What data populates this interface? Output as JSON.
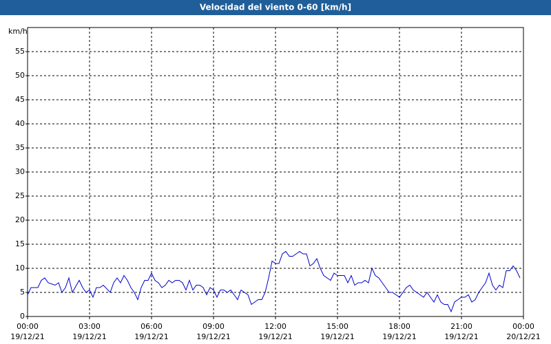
{
  "chart_data": {
    "type": "line",
    "title": "Velocidad del viento 0-60 [km/h]",
    "y_label": "km/h",
    "x": [
      0,
      10,
      30,
      40,
      50,
      60,
      80,
      90,
      100,
      110,
      120,
      130,
      150,
      160,
      170,
      180,
      190,
      200,
      210,
      220,
      240,
      250,
      260,
      270,
      280,
      290,
      300,
      310,
      320,
      330,
      340,
      350,
      360,
      370,
      380,
      390,
      400,
      410,
      420,
      430,
      440,
      450,
      460,
      470,
      480,
      490,
      500,
      510,
      520,
      530,
      540,
      550,
      560,
      570,
      580,
      590,
      600,
      610,
      620,
      630,
      640,
      650,
      660,
      670,
      680,
      690,
      700,
      710,
      720,
      730,
      740,
      750,
      760,
      770,
      780,
      790,
      800,
      810,
      820,
      830,
      840,
      850,
      860,
      870,
      880,
      890,
      900,
      910,
      920,
      930,
      940,
      950,
      960,
      970,
      980,
      990,
      1000,
      1010,
      1020,
      1030,
      1040,
      1050,
      1060,
      1070,
      1080,
      1090,
      1100,
      1110,
      1120,
      1130,
      1140,
      1150,
      1160,
      1170,
      1180,
      1190,
      1200,
      1210,
      1220,
      1230,
      1240,
      1250,
      1260,
      1270,
      1280,
      1290,
      1300,
      1310,
      1320,
      1330,
      1340,
      1350,
      1360,
      1370,
      1380,
      1390,
      1400,
      1410,
      1420,
      1430
    ],
    "series": [
      {
        "name": "Velocidad del viento",
        "color": "#0000cc",
        "values": [
          4.5,
          6,
          6,
          7.5,
          8,
          7,
          6.5,
          7,
          5,
          6,
          8,
          5,
          7.5,
          6,
          5,
          5.5,
          4,
          6,
          6,
          6.5,
          5,
          7,
          8,
          7,
          8.5,
          7.5,
          6,
          5,
          3.5,
          6,
          7.5,
          7.5,
          9,
          7.5,
          7,
          6,
          6.5,
          7.5,
          7,
          7.5,
          7.5,
          7,
          5.5,
          7.5,
          5.5,
          6.5,
          6.5,
          6,
          4.5,
          6,
          5.5,
          4,
          5.5,
          5.5,
          5,
          5.5,
          4.5,
          3.5,
          5.5,
          5,
          4.5,
          2.5,
          3,
          3.5,
          3.5,
          5,
          8,
          11.5,
          11,
          11,
          13,
          13.5,
          12.5,
          12.5,
          13,
          13.5,
          13,
          13,
          10.5,
          11,
          12,
          10,
          8.5,
          8,
          7.5,
          9,
          8.5,
          8.5,
          8.5,
          7,
          8.5,
          6.5,
          7,
          7,
          7.5,
          7,
          10,
          8.5,
          8,
          7,
          6,
          5,
          5,
          4.5,
          4,
          5,
          6,
          6.5,
          5.5,
          5,
          4.5,
          4,
          5,
          4,
          3,
          4.5,
          3,
          2.5,
          2.5,
          1,
          3,
          3.5,
          4,
          4,
          4.5,
          3,
          3.5,
          5,
          6,
          7,
          9,
          6.5,
          5.5,
          6.5,
          6,
          9.5,
          9.5,
          10.5,
          9.5,
          8
        ]
      }
    ],
    "xlim": [
      0,
      1440
    ],
    "xticks": [
      {
        "value": 0,
        "label": "00:00"
      },
      {
        "value": 180,
        "label": "03:00"
      },
      {
        "value": 360,
        "label": "06:00"
      },
      {
        "value": 540,
        "label": "09:00"
      },
      {
        "value": 720,
        "label": "12:00"
      },
      {
        "value": 900,
        "label": "15:00"
      },
      {
        "value": 1080,
        "label": "18:00"
      },
      {
        "value": 1260,
        "label": "21:00"
      },
      {
        "value": 1440,
        "label": "00:00"
      }
    ],
    "xtick_dates": [
      "19/12/21",
      "19/12/21",
      "19/12/21",
      "19/12/21",
      "19/12/21",
      "19/12/21",
      "19/12/21",
      "19/12/21",
      "20/12/21"
    ],
    "ylim": [
      0,
      60
    ],
    "yticks": [
      0,
      5,
      10,
      15,
      20,
      25,
      30,
      35,
      40,
      45,
      50,
      55
    ],
    "grid": true
  }
}
